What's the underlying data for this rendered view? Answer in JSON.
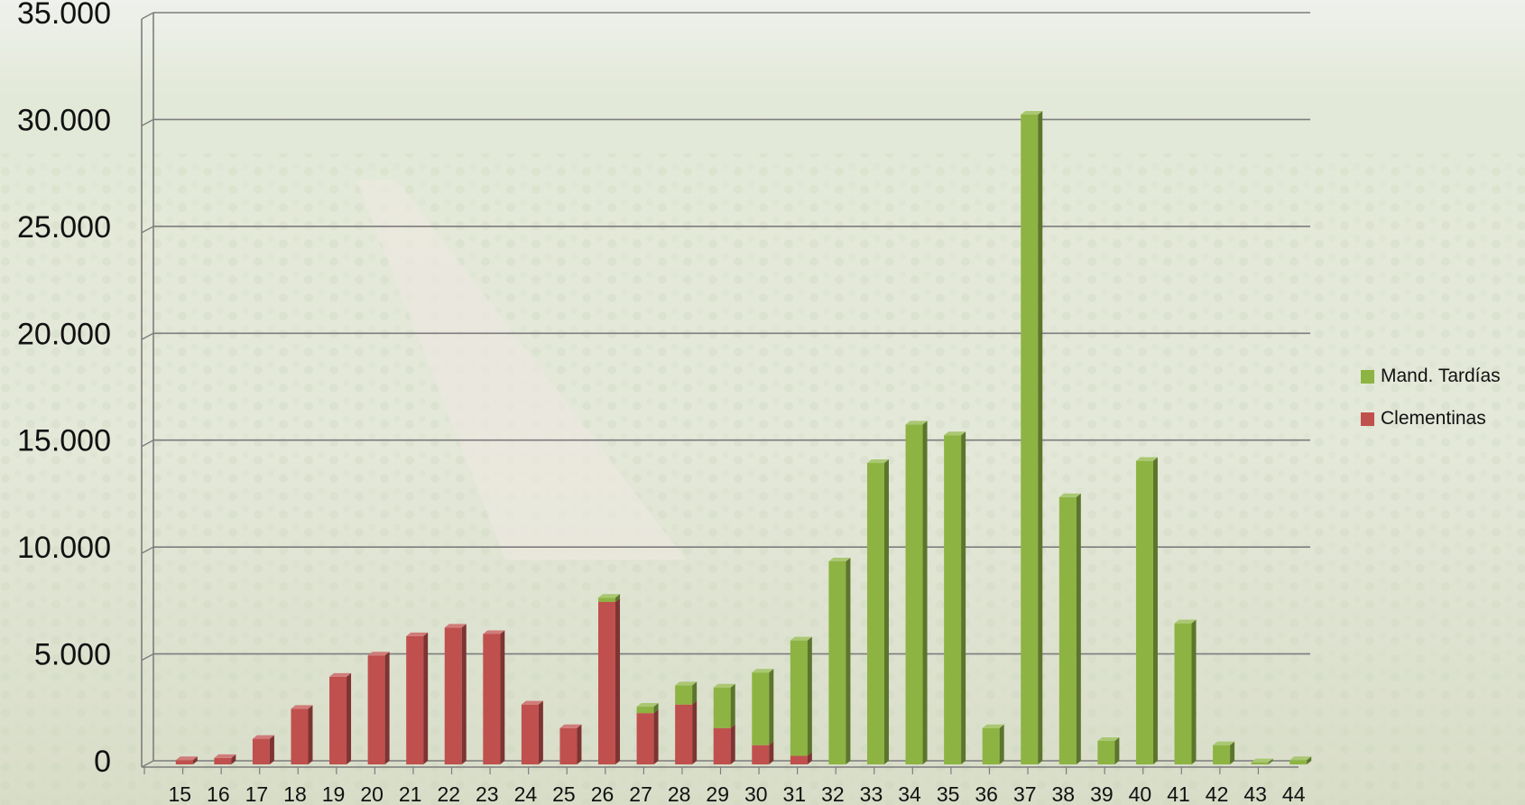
{
  "chart_data": {
    "type": "bar",
    "stacked": true,
    "three_d": true,
    "categories": [
      "15",
      "16",
      "17",
      "18",
      "19",
      "20",
      "21",
      "22",
      "23",
      "24",
      "25",
      "26",
      "27",
      "28",
      "29",
      "30",
      "31",
      "32",
      "33",
      "34",
      "35",
      "36",
      "37",
      "38",
      "39",
      "40",
      "41",
      "42",
      "43",
      "44"
    ],
    "series": [
      {
        "name": "Clementinas",
        "color": "#c0504d",
        "values": [
          200,
          300,
          1200,
          2600,
          4100,
          5100,
          6000,
          6400,
          6100,
          2800,
          1700,
          7600,
          2400,
          2800,
          1700,
          900,
          400,
          0,
          0,
          0,
          0,
          0,
          0,
          0,
          0,
          0,
          0,
          0,
          0,
          0
        ]
      },
      {
        "name": "Mand. Tardías",
        "color": "#8db443",
        "values": [
          0,
          0,
          0,
          0,
          0,
          0,
          0,
          0,
          0,
          0,
          0,
          200,
          300,
          900,
          1900,
          3400,
          5400,
          9500,
          14100,
          15900,
          15400,
          1700,
          30400,
          12500,
          1100,
          14200,
          6600,
          900,
          100,
          200
        ]
      }
    ],
    "y_ticks": [
      "0",
      "5.000",
      "10.000",
      "15.000",
      "20.000",
      "25.000",
      "30.000",
      "35.000"
    ],
    "ylim": [
      0,
      35000
    ],
    "grid": true,
    "legend_position": "right",
    "legend": [
      {
        "label": "Mand. Tardías",
        "color": "#8db443"
      },
      {
        "label": "Clementinas",
        "color": "#c0504d"
      }
    ]
  }
}
